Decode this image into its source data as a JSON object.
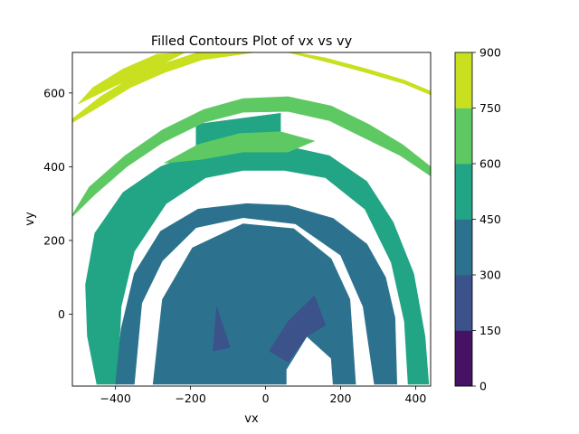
{
  "chart_data": {
    "type": "contourf",
    "title": "Filled Contours Plot of vx vs vy",
    "xlabel": "vx",
    "ylabel": "vy",
    "xlim": [
      -515,
      440
    ],
    "ylim": [
      -195,
      710
    ],
    "x_ticks": [
      -400,
      -200,
      0,
      200,
      400
    ],
    "y_ticks": [
      0,
      200,
      400,
      600
    ],
    "colorbar": {
      "levels": [
        0,
        150,
        300,
        450,
        600,
        750,
        900
      ],
      "colors": [
        "#471164",
        "#3b528b",
        "#2c728e",
        "#21a585",
        "#5ec962",
        "#c8e020"
      ],
      "tick_labels": [
        "0",
        "150",
        "300",
        "450",
        "600",
        "750",
        "900"
      ]
    },
    "filled_regions": [
      {
        "band": "450-600",
        "points": [
          [
            -450,
            -190
          ],
          [
            -475,
            -60
          ],
          [
            -480,
            80
          ],
          [
            -455,
            220
          ],
          [
            -380,
            330
          ],
          [
            -280,
            400
          ],
          [
            -180,
            440
          ],
          [
            -60,
            455
          ],
          [
            60,
            455
          ],
          [
            170,
            430
          ],
          [
            270,
            360
          ],
          [
            340,
            250
          ],
          [
            395,
            110
          ],
          [
            425,
            -60
          ],
          [
            435,
            -190
          ],
          [
            380,
            -190
          ],
          [
            370,
            -20
          ],
          [
            335,
            140
          ],
          [
            265,
            285
          ],
          [
            160,
            370
          ],
          [
            50,
            390
          ],
          [
            -60,
            390
          ],
          [
            -160,
            370
          ],
          [
            -265,
            300
          ],
          [
            -350,
            170
          ],
          [
            -385,
            20
          ],
          [
            -395,
            -190
          ]
        ]
      },
      {
        "band": "450-600",
        "points": [
          [
            -185,
            515
          ],
          [
            -185,
            440
          ],
          [
            40,
            440
          ],
          [
            40,
            545
          ]
        ]
      },
      {
        "band": "300-450",
        "points": [
          [
            -400,
            -190
          ],
          [
            -385,
            -40
          ],
          [
            -350,
            110
          ],
          [
            -280,
            225
          ],
          [
            -180,
            285
          ],
          [
            -50,
            300
          ],
          [
            60,
            295
          ],
          [
            180,
            260
          ],
          [
            270,
            190
          ],
          [
            320,
            100
          ],
          [
            345,
            -10
          ],
          [
            350,
            -190
          ],
          [
            290,
            -190
          ],
          [
            260,
            20
          ],
          [
            200,
            160
          ],
          [
            80,
            245
          ],
          [
            -60,
            262
          ],
          [
            -185,
            235
          ],
          [
            -275,
            145
          ],
          [
            -330,
            30
          ],
          [
            -350,
            -190
          ]
        ]
      },
      {
        "band": "300-450",
        "points": [
          [
            -300,
            -190
          ],
          [
            -275,
            40
          ],
          [
            -195,
            180
          ],
          [
            -60,
            245
          ],
          [
            75,
            232
          ],
          [
            175,
            150
          ],
          [
            225,
            40
          ],
          [
            240,
            -190
          ],
          [
            180,
            -190
          ],
          [
            175,
            -120
          ],
          [
            110,
            -60
          ],
          [
            55,
            -150
          ],
          [
            55,
            -190
          ],
          [
            -280,
            -190
          ]
        ]
      },
      {
        "band": "150-300",
        "points": [
          [
            10,
            -100
          ],
          [
            60,
            -20
          ],
          [
            130,
            50
          ],
          [
            160,
            -30
          ],
          [
            110,
            -60
          ],
          [
            60,
            -130
          ]
        ]
      },
      {
        "band": "150-300",
        "points": [
          [
            -95,
            -90
          ],
          [
            -130,
            20
          ],
          [
            -140,
            -100
          ]
        ]
      },
      {
        "band": "600-750",
        "points": [
          [
            -515,
            270
          ],
          [
            -470,
            345
          ],
          [
            -375,
            430
          ],
          [
            -275,
            500
          ],
          [
            -165,
            555
          ],
          [
            -60,
            585
          ],
          [
            60,
            590
          ],
          [
            175,
            565
          ],
          [
            275,
            515
          ],
          [
            365,
            460
          ],
          [
            440,
            400
          ],
          [
            440,
            375
          ],
          [
            360,
            430
          ],
          [
            270,
            475
          ],
          [
            170,
            525
          ],
          [
            60,
            550
          ],
          [
            -60,
            548
          ],
          [
            -165,
            520
          ],
          [
            -275,
            465
          ],
          [
            -370,
            400
          ],
          [
            -455,
            325
          ],
          [
            -515,
            265
          ]
        ]
      },
      {
        "band": "600-750",
        "points": [
          [
            -270,
            410
          ],
          [
            -180,
            460
          ],
          [
            -70,
            490
          ],
          [
            40,
            495
          ],
          [
            130,
            470
          ],
          [
            60,
            440
          ],
          [
            -60,
            440
          ],
          [
            -170,
            420
          ]
        ]
      },
      {
        "band": "750-900",
        "points": [
          [
            -515,
            530
          ],
          [
            -440,
            590
          ],
          [
            -360,
            640
          ],
          [
            -270,
            680
          ],
          [
            -180,
            710
          ],
          [
            -30,
            710
          ],
          [
            -170,
            690
          ],
          [
            -270,
            655
          ],
          [
            -360,
            615
          ],
          [
            -440,
            565
          ],
          [
            -515,
            520
          ]
        ]
      },
      {
        "band": "750-900",
        "points": [
          [
            -500,
            570
          ],
          [
            -400,
            620
          ],
          [
            -300,
            665
          ],
          [
            -215,
            710
          ],
          [
            -290,
            705
          ],
          [
            -380,
            665
          ],
          [
            -460,
            615
          ]
        ]
      },
      {
        "band": "750-900",
        "points": [
          [
            80,
            710
          ],
          [
            160,
            695
          ],
          [
            270,
            665
          ],
          [
            370,
            635
          ],
          [
            440,
            605
          ],
          [
            440,
            595
          ],
          [
            370,
            625
          ],
          [
            270,
            655
          ],
          [
            160,
            685
          ],
          [
            60,
            710
          ]
        ]
      }
    ]
  }
}
